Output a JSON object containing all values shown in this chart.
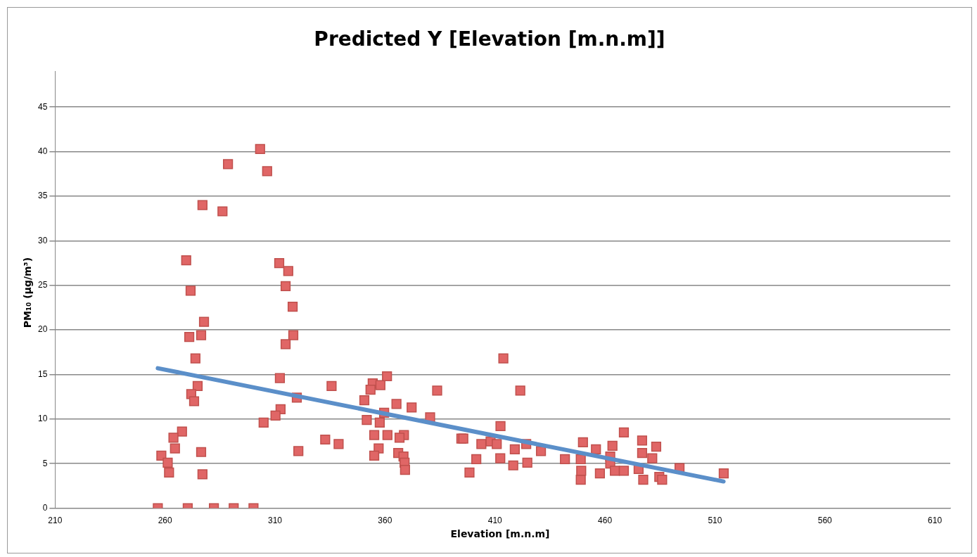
{
  "chart_data": {
    "type": "scatter",
    "title": "Predicted Y [Elevation [m.n.m]]",
    "xlabel": "Elevation [m.n.m]",
    "ylabel": "PM₁₀ (µg/m³)",
    "xlim": [
      210,
      617
    ],
    "xticks": [
      210,
      260,
      310,
      360,
      410,
      460,
      510,
      560,
      610
    ],
    "ylim": [
      0,
      49
    ],
    "yticks": [
      0,
      5,
      10,
      15,
      20,
      25,
      30,
      35,
      40,
      45
    ],
    "grid": "y",
    "legend": false,
    "marker": "square",
    "series": [
      {
        "type": "scatter",
        "color": "#e06666",
        "x": [
          256.7,
          270.3,
          282.2,
          291.2,
          300.2,
          303.2,
          306.4,
          288.6,
          277,
          286.1,
          269.6,
          271.6,
          271,
          276.4,
          277.7,
          273.8,
          274.8,
          271.9,
          273.2,
          267.7,
          263.8,
          264.5,
          258.3,
          261.2,
          261.8,
          276.4,
          277,
          312.2,
          311.9,
          316,
          314.8,
          318,
          318.3,
          314.8,
          319.9,
          320.6,
          312.5,
          310.2,
          304.8,
          332.8,
          335.7,
          338.9,
          350.6,
          354.4,
          353.4,
          357.9,
          360.9,
          351.7,
          357.6,
          359.6,
          365.2,
          372.1,
          380.5,
          383.7,
          355.1,
          361.1,
          368.6,
          366.6,
          357.1,
          355.1,
          366,
          368.4,
          368.9,
          369.1,
          394.7,
          395.6,
          412.5,
          413.8,
          421.5,
          401.5,
          398.4,
          403.8,
          408,
          410.8,
          412.4,
          418.3,
          419,
          424.2,
          424.7,
          430.9,
          441.8,
          449,
          450,
          449,
          449.2,
          455.9,
          457.7,
          462.4,
          462.4,
          463.4,
          464.5,
          468.6,
          468.6,
          476.9,
          476.9,
          481.5,
          483.3,
          475.3,
          477.4,
          484.7,
          486,
          493.9,
          514
        ],
        "values": [
          0,
          0,
          0,
          0,
          0,
          40.3,
          37.8,
          38.6,
          34,
          33.3,
          27.8,
          24.4,
          19.2,
          19.4,
          20.9,
          16.8,
          13.7,
          12.8,
          12,
          8.6,
          7.9,
          6.7,
          5.9,
          5.1,
          4,
          6.3,
          3.8,
          14.6,
          27.5,
          26.6,
          24.9,
          22.6,
          19.4,
          18.4,
          12.4,
          6.4,
          11.1,
          10.4,
          9.6,
          7.7,
          13.7,
          7.2,
          12.1,
          14,
          13.3,
          13.8,
          14.8,
          9.9,
          9.6,
          10.7,
          11.7,
          11.3,
          10.2,
          13.2,
          8.2,
          8.2,
          8.2,
          7.9,
          6.7,
          5.9,
          6.2,
          5.8,
          5.1,
          4.3,
          7.8,
          7.8,
          9.2,
          16.8,
          13.2,
          5.5,
          4,
          7.2,
          7.5,
          7.2,
          5.6,
          4.8,
          6.6,
          7.2,
          5.1,
          6.4,
          5.5,
          5.5,
          7.4,
          3.2,
          4.2,
          6.6,
          3.9,
          5.8,
          5,
          7,
          4.2,
          4.2,
          8.5,
          7.6,
          6.2,
          5.6,
          6.9,
          4.4,
          3.2,
          3.5,
          3.2,
          4.5,
          3.9
        ]
      },
      {
        "type": "line",
        "color": "#5b8fc9",
        "marker": "none",
        "x": [
          256.7,
          513.9
        ],
        "values": [
          15.7,
          3.0
        ]
      }
    ]
  }
}
